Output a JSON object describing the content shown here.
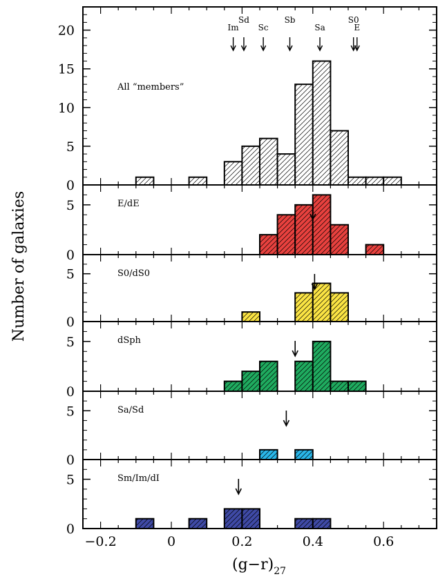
{
  "chart_data": {
    "type": "bar",
    "xlabel": "(g−r)",
    "xlabel_sub": "27",
    "ylabel": "Number of galaxies",
    "xlim": [
      -0.25,
      0.75
    ],
    "x_ticks": [
      -0.2,
      0,
      0.2,
      0.4,
      0.6
    ],
    "x_tick_labels": [
      "−0.2",
      "0",
      "0.2",
      "0.4",
      "0.6"
    ],
    "bin_width": 0.05,
    "panels": [
      {
        "label": "All “members”",
        "color": "#ffffff",
        "ylim": [
          0,
          23
        ],
        "y_ticks": [
          0,
          5,
          10,
          15,
          20
        ],
        "y_tick_labels": [
          "0",
          "5",
          "10",
          "15",
          "20"
        ],
        "bins": [
          -0.1,
          0.05,
          0.15,
          0.2,
          0.25,
          0.3,
          0.35,
          0.4,
          0.45,
          0.5,
          0.55,
          0.6
        ],
        "counts": [
          1,
          1,
          3,
          5,
          6,
          4,
          13,
          16,
          7,
          1,
          1,
          1
        ],
        "morph_markers": [
          {
            "label": "Im",
            "x": 0.175
          },
          {
            "label": "Sd",
            "x": 0.205
          },
          {
            "label": "Sc",
            "x": 0.26
          },
          {
            "label": "Sb",
            "x": 0.335
          },
          {
            "label": "Sa",
            "x": 0.42
          },
          {
            "label": "S0",
            "x": 0.515
          },
          {
            "label": "E",
            "x": 0.525
          }
        ]
      },
      {
        "label": "E/dE",
        "color": "#e8413e",
        "ylim": [
          0,
          7
        ],
        "y_ticks": [
          0,
          5
        ],
        "y_tick_labels": [
          "0",
          "5"
        ],
        "bins": [
          0.25,
          0.3,
          0.35,
          0.4,
          0.45,
          0.55
        ],
        "counts": [
          2,
          4,
          5,
          6,
          3,
          1
        ],
        "mean_arrow": 0.4
      },
      {
        "label": "S0/dS0",
        "color": "#fbe443",
        "ylim": [
          0,
          7
        ],
        "y_ticks": [
          0,
          5
        ],
        "y_tick_labels": [
          "0",
          "5"
        ],
        "bins": [
          0.2,
          0.35,
          0.4,
          0.45
        ],
        "counts": [
          1,
          3,
          4,
          3
        ],
        "mean_arrow": 0.405
      },
      {
        "label": "dSph",
        "color": "#1fab5f",
        "ylim": [
          0,
          7
        ],
        "y_ticks": [
          0,
          5
        ],
        "y_tick_labels": [
          "0",
          "5"
        ],
        "bins": [
          0.15,
          0.2,
          0.25,
          0.35,
          0.4,
          0.45,
          0.5
        ],
        "counts": [
          1,
          2,
          3,
          3,
          5,
          1,
          1
        ],
        "mean_arrow": 0.35
      },
      {
        "label": "Sa/Sd",
        "color": "#29b6e8",
        "ylim": [
          0,
          7
        ],
        "y_ticks": [
          0,
          5
        ],
        "y_tick_labels": [
          "0",
          "5"
        ],
        "bins": [
          0.25,
          0.35
        ],
        "counts": [
          1,
          1
        ],
        "mean_arrow": 0.325
      },
      {
        "label": "Sm/Im/dI",
        "color": "#3f4aa6",
        "ylim": [
          0,
          7
        ],
        "y_ticks": [
          0,
          5
        ],
        "y_tick_labels": [
          "0",
          "5"
        ],
        "bins": [
          -0.1,
          0.05,
          0.15,
          0.2,
          0.35,
          0.4
        ],
        "counts": [
          1,
          1,
          2,
          2,
          1,
          1
        ],
        "mean_arrow": 0.19
      }
    ]
  }
}
